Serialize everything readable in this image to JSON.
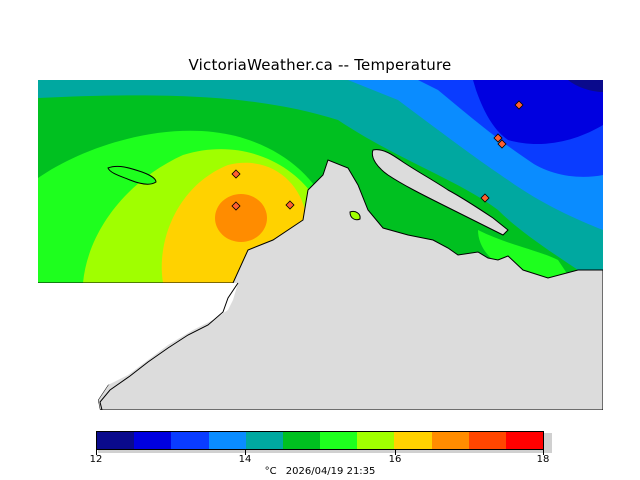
{
  "title": "VictoriaWeather.ca  --  Temperature",
  "legend": {
    "ticks": [
      "12",
      "14",
      "16",
      "18"
    ],
    "units": "°C",
    "timestamp": "2026/04/19 21:35",
    "colors": [
      "#0a0a8c",
      "#0000e0",
      "#0a3cff",
      "#0a8cff",
      "#00a8a0",
      "#00c020",
      "#1eff1e",
      "#a0ff00",
      "#ffd200",
      "#ff8c00",
      "#ff4600",
      "#ff0000"
    ]
  },
  "map": {
    "land_color": "#dcdcdc",
    "stations": [
      "station-1",
      "station-2",
      "station-3",
      "station-4",
      "station-5",
      "station-6",
      "station-7"
    ]
  }
}
